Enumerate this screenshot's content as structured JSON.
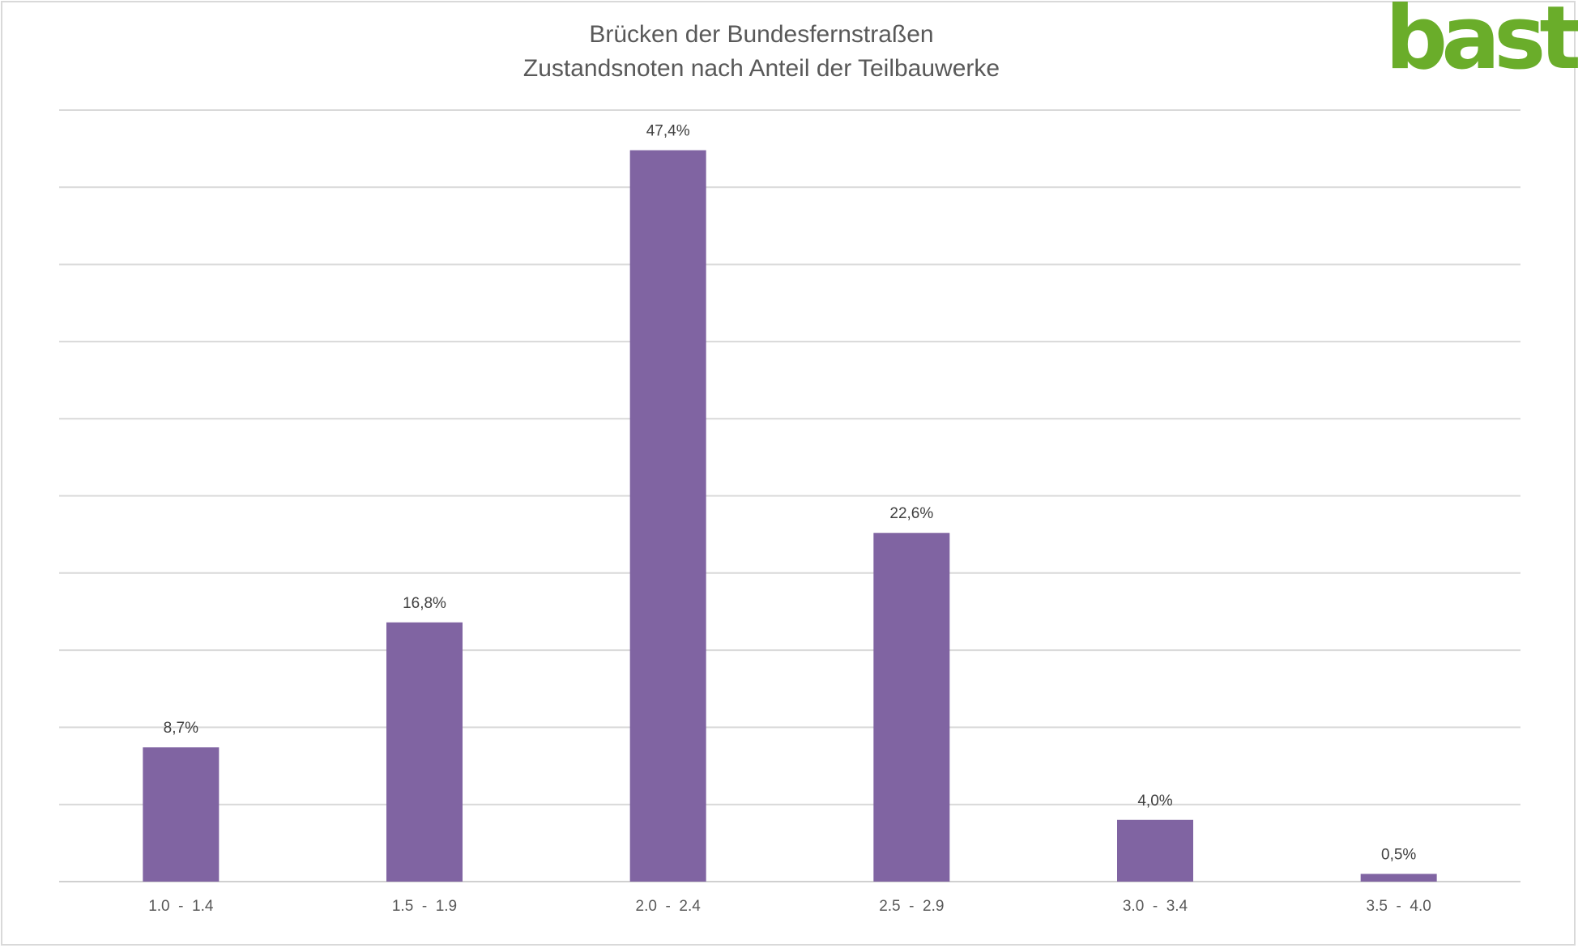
{
  "logo": {
    "text": "bast",
    "color": "#6aad2a"
  },
  "chart_data": {
    "type": "bar",
    "title": "Brücken der Bundesfernstraßen",
    "subtitle": "Zustandsnoten nach Anteil der Teilbauwerke",
    "categories": [
      "1.0  -  1.4",
      "1.5  -  1.9",
      "2.0  -  2.4",
      "2.5  -  2.9",
      "3.0  -  3.4",
      "3.5  -  4.0"
    ],
    "values": [
      8.7,
      16.8,
      47.4,
      22.6,
      4.0,
      0.5
    ],
    "value_labels": [
      "8,7%",
      "16,8%",
      "47,4%",
      "22,6%",
      "4,0%",
      "0,5%"
    ],
    "ylim": [
      0,
      50
    ],
    "grid": true,
    "bar_color": "#8064a2"
  }
}
